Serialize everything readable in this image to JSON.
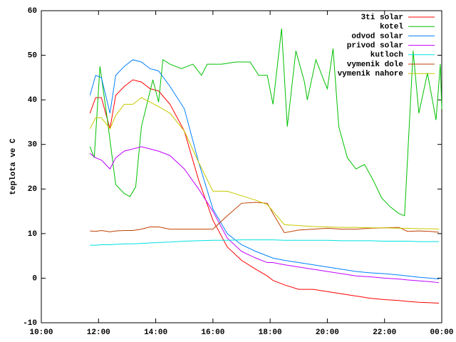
{
  "chart_data": {
    "type": "line",
    "ylabel": "teplota ve C",
    "xlim": [
      10,
      24
    ],
    "ylim": [
      -10,
      60
    ],
    "xticks": [
      {
        "value": 10,
        "label": "10:00"
      },
      {
        "value": 12,
        "label": "12:00"
      },
      {
        "value": 14,
        "label": "14:00"
      },
      {
        "value": 16,
        "label": "16:00"
      },
      {
        "value": 18,
        "label": "18:00"
      },
      {
        "value": 20,
        "label": "20:00"
      },
      {
        "value": 22,
        "label": "22:00"
      },
      {
        "value": 24,
        "label": "00:00"
      }
    ],
    "yticks": [
      -10,
      0,
      10,
      20,
      30,
      40,
      50,
      60
    ],
    "legend": "top-right",
    "x": [
      11.7,
      11.9,
      12.1,
      12.4,
      12.6,
      12.9,
      13.2,
      13.5,
      13.8,
      14.1,
      14.5,
      15.0,
      15.5,
      16.0,
      16.5,
      17.0,
      17.5,
      17.9,
      18.1,
      18.5,
      19.0,
      19.5,
      20.0,
      20.5,
      21.0,
      21.5,
      22.0,
      22.5,
      22.8,
      23.2,
      23.6,
      23.9
    ],
    "series": [
      {
        "name": "3ti solar",
        "color": "#ff0000",
        "values": [
          37,
          40.5,
          40.5,
          33.5,
          41,
          43,
          44.5,
          44,
          42.5,
          42,
          39,
          33,
          22,
          13,
          7,
          4,
          2,
          0.5,
          -0.5,
          -1.5,
          -2.5,
          -2.5,
          -3,
          -3.5,
          -4,
          -4.5,
          -4.8,
          -5,
          -5.2,
          -5.4,
          -5.5,
          -5.6
        ]
      },
      {
        "name": "kotel",
        "color": "#00c000",
        "x": [
          11.7,
          11.85,
          12.05,
          12.3,
          12.6,
          12.9,
          13.1,
          13.3,
          13.5,
          13.9,
          14.1,
          14.25,
          14.5,
          14.9,
          15.3,
          15.6,
          15.8,
          16.3,
          16.8,
          17.3,
          17.6,
          17.9,
          18.1,
          18.4,
          18.6,
          18.9,
          19.2,
          19.3,
          19.6,
          19.9,
          20.0,
          20.2,
          20.4,
          20.7,
          21.0,
          21.3,
          21.6,
          21.9,
          22.2,
          22.5,
          22.7,
          23.0,
          23.2,
          23.5,
          23.8,
          23.95,
          24.0
        ],
        "values": [
          29.5,
          27,
          47.5,
          36,
          21,
          19,
          18.3,
          20.5,
          34,
          44.5,
          39.5,
          49,
          48,
          47,
          48,
          45.5,
          48,
          48,
          48.5,
          48.5,
          45.5,
          45.5,
          39,
          56,
          34,
          51,
          44,
          40,
          49,
          44,
          42.5,
          51.5,
          34,
          27,
          24.5,
          25.5,
          22,
          18,
          16,
          14.5,
          14,
          51,
          37,
          46,
          35.5,
          48,
          38
        ]
      },
      {
        "name": "odvod solar",
        "color": "#0080ff",
        "values": [
          41,
          45.5,
          45,
          37,
          45.5,
          47.5,
          49,
          48.5,
          47,
          46.5,
          43,
          38,
          26,
          15.5,
          10,
          7.5,
          6,
          5,
          4.5,
          4,
          3.5,
          3,
          2.5,
          2,
          1.5,
          1.2,
          1,
          0.7,
          0.5,
          0.2,
          0,
          -0.2
        ]
      },
      {
        "name": "privod solar",
        "color": "#c000ff",
        "values": [
          28,
          27,
          26.5,
          24.5,
          27,
          28.5,
          29,
          29.5,
          29,
          28.5,
          27.5,
          24.5,
          20,
          15,
          9,
          6,
          4.5,
          3.5,
          3.5,
          3,
          2.5,
          2,
          1.5,
          1,
          0.5,
          0.3,
          0,
          -0.2,
          -0.4,
          -0.6,
          -0.8,
          -1
        ]
      },
      {
        "name": "kutloch",
        "color": "#00e0e0",
        "values": [
          7.4,
          7.4,
          7.5,
          7.5,
          7.6,
          7.7,
          7.7,
          7.8,
          7.9,
          8,
          8.1,
          8.3,
          8.4,
          8.5,
          8.5,
          8.6,
          8.6,
          8.6,
          8.6,
          8.5,
          8.5,
          8.5,
          8.5,
          8.4,
          8.4,
          8.4,
          8.3,
          8.3,
          8.3,
          8.2,
          8.2,
          8.2
        ]
      },
      {
        "name": "vymenik dole",
        "color": "#c04000",
        "values": [
          10.6,
          10.5,
          10.7,
          10.4,
          10.6,
          10.7,
          10.7,
          11,
          11.5,
          11.5,
          11,
          11,
          11,
          11,
          14,
          16.8,
          17,
          16.8,
          14.5,
          10.2,
          10.8,
          11,
          11.2,
          11,
          11,
          11.2,
          11.3,
          11.4,
          10.5,
          10.6,
          10.5,
          10.3
        ]
      },
      {
        "name": "vymenik nahore",
        "color": "#c8c800",
        "values": [
          33.5,
          36,
          36,
          33.5,
          36.5,
          39,
          39,
          40.5,
          39.5,
          38.5,
          37,
          33,
          26,
          19.5,
          19.5,
          18.5,
          17.5,
          16.5,
          15,
          12,
          11.8,
          11.6,
          11.5,
          11.4,
          11.4,
          11.3,
          11.3,
          11.2,
          11.2,
          11.1,
          11.1,
          11
        ]
      }
    ]
  }
}
